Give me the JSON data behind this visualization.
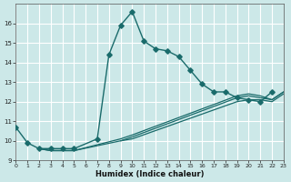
{
  "xlabel": "Humidex (Indice chaleur)",
  "xlim": [
    0,
    23
  ],
  "ylim": [
    9,
    17
  ],
  "yticks": [
    9,
    10,
    11,
    12,
    13,
    14,
    15,
    16
  ],
  "xticks": [
    0,
    1,
    2,
    3,
    4,
    5,
    6,
    7,
    8,
    9,
    10,
    11,
    12,
    13,
    14,
    15,
    16,
    17,
    18,
    19,
    20,
    21,
    22,
    23
  ],
  "bg_color": "#cce8e8",
  "grid_color": "#b0d4d4",
  "line_color": "#1a6b6b",
  "lines": [
    {
      "x": [
        0,
        1,
        2,
        3,
        4,
        5,
        7,
        8,
        9,
        10,
        11,
        12,
        13,
        14,
        15,
        16,
        17,
        18,
        19,
        20,
        21,
        22,
        23
      ],
      "y": [
        10.7,
        9.9,
        9.6,
        9.6,
        9.6,
        9.6,
        10.1,
        14.4,
        15.9,
        16.6,
        15.1,
        14.7,
        14.6,
        14.3,
        13.6,
        12.9,
        12.5,
        12.5,
        12.2,
        12.1,
        12.0,
        12.5,
        null
      ],
      "marker": true
    },
    {
      "x": [
        2,
        3,
        4,
        5,
        7,
        8,
        9,
        10,
        19,
        20,
        21,
        22,
        23
      ],
      "y": [
        9.6,
        9.6,
        9.6,
        9.6,
        null,
        null,
        10.0,
        10.1,
        12.0,
        12.1,
        12.1,
        12.0,
        12.4
      ],
      "marker": false
    },
    {
      "x": [
        2,
        3,
        4,
        5,
        9,
        10,
        19,
        20,
        21,
        22,
        23
      ],
      "y": [
        9.6,
        9.5,
        9.5,
        9.5,
        10.0,
        10.2,
        12.2,
        12.3,
        12.2,
        12.1,
        12.5
      ],
      "marker": false
    },
    {
      "x": [
        2,
        3,
        4,
        5,
        9,
        10,
        19,
        20,
        21,
        22,
        23
      ],
      "y": [
        9.6,
        9.5,
        9.5,
        9.5,
        10.1,
        10.3,
        12.3,
        12.4,
        12.3,
        12.1,
        12.5
      ],
      "marker": false
    }
  ]
}
